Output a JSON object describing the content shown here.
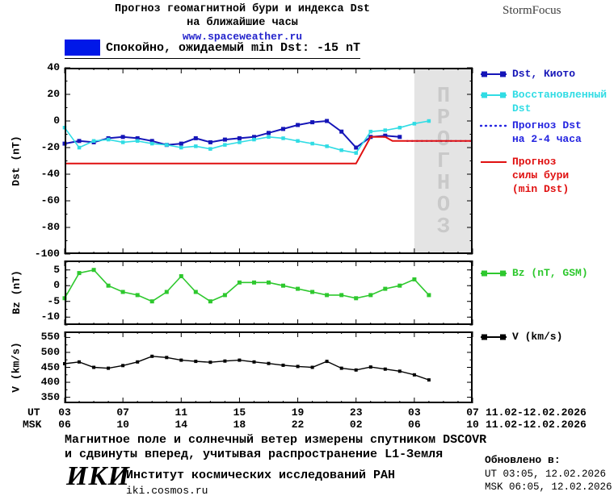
{
  "header": {
    "title_line1": "Прогноз геомагнитной бури и индекса Dst",
    "title_line2": "на ближайшие часы",
    "website": "www.spaceweather.ru",
    "brand": "StormFocus"
  },
  "status": {
    "text": "Спокойно, ожидаемый min Dst: -15 nT",
    "swatch_color": "#0018e8"
  },
  "chart_data": [
    {
      "id": "dst",
      "type": "line",
      "ylabel": "Dst (nT)",
      "xlim": [
        3,
        31
      ],
      "ylim": [
        -100,
        40
      ],
      "yticks": [
        40,
        20,
        0,
        -20,
        -40,
        -60,
        -80,
        -100
      ],
      "yminor": 10,
      "forecast_band": {
        "x0": 27,
        "x1": 31,
        "color": "#e4e4e4",
        "label": "ПРОГНОЗ",
        "label_color": "#c9c9c9"
      },
      "series": [
        {
          "name": "Dst, Киото",
          "color": "#1515b8",
          "width": 2,
          "marker": "square",
          "msize": 5,
          "x": [
            3,
            4,
            5,
            6,
            7,
            8,
            9,
            10,
            11,
            12,
            13,
            14,
            15,
            16,
            17,
            18,
            19,
            20,
            21,
            22,
            23,
            24,
            25,
            26
          ],
          "y": [
            -17,
            -15,
            -16,
            -13,
            -12,
            -13,
            -15,
            -18,
            -17,
            -13,
            -16,
            -14,
            -13,
            -12,
            -9,
            -6,
            -3,
            -1,
            0,
            -8,
            -20,
            -12,
            -11,
            -12
          ]
        },
        {
          "name": "Восстановленный Dst",
          "color": "#30dce4",
          "width": 1.6,
          "marker": "square",
          "msize": 4.5,
          "x": [
            3,
            4,
            5,
            6,
            7,
            8,
            9,
            10,
            11,
            12,
            13,
            14,
            15,
            16,
            17,
            18,
            19,
            20,
            21,
            22,
            23,
            24,
            25,
            26,
            27,
            28
          ],
          "y": [
            -5,
            -20,
            -15,
            -14,
            -16,
            -15,
            -17,
            -18,
            -20,
            -19,
            -21,
            -18,
            -16,
            -14,
            -12,
            -13,
            -15,
            -17,
            -19,
            -22,
            -24,
            -8,
            -7,
            -5,
            -2,
            0
          ]
        },
        {
          "name": "Прогноз Dst на 2-4 часа",
          "color": "#2424e0",
          "width": 2.2,
          "dash": "1 5",
          "x": [
            26.5,
            31
          ],
          "y": [
            -15,
            -15
          ]
        },
        {
          "name": "Прогноз силы бури (min Dst)",
          "color": "#e01010",
          "width": 2,
          "x": [
            3,
            23,
            24,
            25,
            25.5,
            31
          ],
          "y": [
            -32,
            -32,
            -12,
            -12,
            -15,
            -15
          ]
        }
      ]
    },
    {
      "id": "bz",
      "type": "line",
      "ylabel": "Bz (nT)",
      "xlim": [
        3,
        31
      ],
      "ylim": [
        -12.5,
        8
      ],
      "yticks": [
        5,
        0,
        -5,
        -10
      ],
      "yminor": 2.5,
      "series": [
        {
          "name": "Bz (nT, GSM)",
          "color": "#2ec82e",
          "width": 1.6,
          "marker": "square",
          "msize": 5,
          "x": [
            3,
            4,
            5,
            6,
            7,
            8,
            9,
            10,
            11,
            12,
            13,
            14,
            15,
            16,
            17,
            18,
            19,
            20,
            21,
            22,
            23,
            24,
            25,
            26,
            27,
            28
          ],
          "y": [
            -4,
            4,
            5,
            0,
            -2,
            -3,
            -5,
            -2,
            3,
            -2,
            -5,
            -3,
            1,
            1,
            1,
            0,
            -1,
            -2,
            -3,
            -3,
            -4,
            -3,
            -1,
            0,
            2,
            -3
          ]
        }
      ]
    },
    {
      "id": "v",
      "type": "line",
      "ylabel": "V (km/s)",
      "xlim": [
        3,
        31
      ],
      "ylim": [
        330,
        570
      ],
      "yticks": [
        550,
        500,
        450,
        400,
        350
      ],
      "yminor": 25,
      "series": [
        {
          "name": "V (km/s)",
          "color": "#000000",
          "width": 1.4,
          "marker": "square",
          "msize": 4,
          "x": [
            3,
            4,
            5,
            6,
            7,
            8,
            9,
            10,
            11,
            12,
            13,
            14,
            15,
            16,
            17,
            18,
            19,
            20,
            21,
            22,
            23,
            24,
            25,
            26,
            27,
            28
          ],
          "y": [
            462,
            468,
            450,
            447,
            456,
            468,
            487,
            483,
            474,
            470,
            467,
            471,
            474,
            468,
            463,
            457,
            453,
            450,
            470,
            447,
            441,
            451,
            444,
            437,
            425,
            408
          ]
        }
      ]
    }
  ],
  "xaxis": {
    "ticks": [
      3,
      7,
      11,
      15,
      19,
      23,
      27,
      31
    ],
    "ut_prefix": "UT",
    "msk_prefix": "MSK",
    "ut_labels": [
      "03",
      "07",
      "11",
      "15",
      "19",
      "23",
      "03",
      "07"
    ],
    "msk_labels": [
      "06",
      "10",
      "14",
      "18",
      "22",
      "02",
      "06",
      "10"
    ],
    "ut_daterange": "11.02-12.02.2026",
    "msk_daterange": "11.02-12.02.2026"
  },
  "legend": {
    "items": [
      {
        "label": "Dst, Киото",
        "color": "#1515b8",
        "marker": "line-squares"
      },
      {
        "label": "Восстановленный\nDst",
        "color": "#30dce4",
        "marker": "line-squares"
      },
      {
        "label": "Прогноз Dst\nна 2-4 часа",
        "color": "#2424e0",
        "marker": "dotted-line"
      },
      {
        "label": "Прогноз\nсилы бури\n(min Dst)",
        "color": "#e01010",
        "marker": "line"
      },
      {
        "label": "Bz (nT, GSM)",
        "color": "#2ec82e",
        "marker": "line-squares"
      },
      {
        "label": "V (km/s)",
        "color": "#000000",
        "marker": "line-squares"
      }
    ]
  },
  "footnote": {
    "line1": "Магнитное поле и солнечный ветер измерены спутником DSCOVR",
    "line2": "и сдвинуты вперед, учитывая распространение L1-Земля"
  },
  "updated": {
    "heading": "Обновлено в:",
    "ut": "UT  03:05, 12.02.2026",
    "msk": "MSK 06:05, 12.02.2026"
  },
  "org": {
    "logo": "ИКИ",
    "name": "Институт космических исследований РАН",
    "site": "iki.cosmos.ru"
  }
}
